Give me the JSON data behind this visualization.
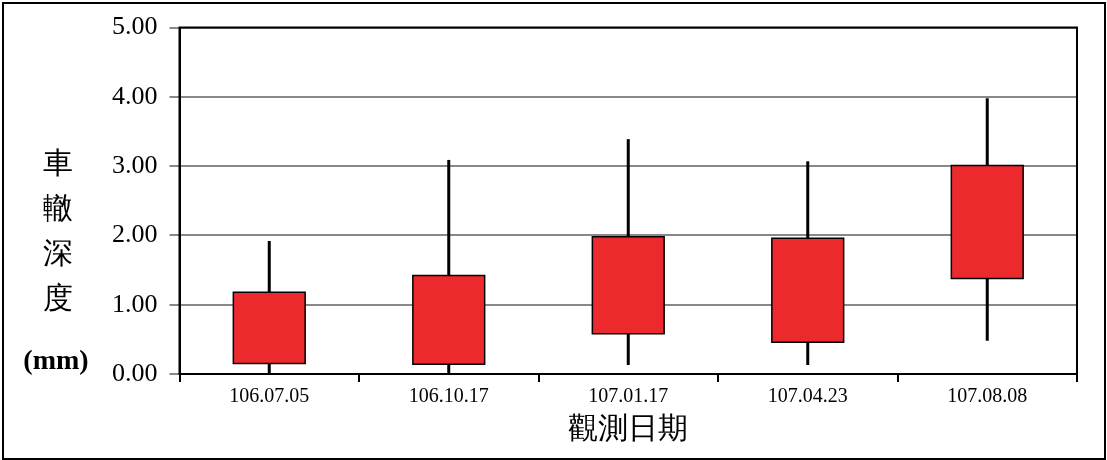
{
  "chart_data": {
    "type": "candlestick",
    "xlabel": "觀測日期",
    "ylabel": "車轍深度(mm)",
    "categories": [
      "106.07.05",
      "106.10.17",
      "107.01.17",
      "107.04.23",
      "107.08.08"
    ],
    "ohlc": [
      [
        0.15,
        1.92,
        0,
        1.18
      ],
      [
        0.14,
        3.09,
        0,
        1.42
      ],
      [
        0.58,
        3.39,
        0.13,
        1.98
      ],
      [
        0.46,
        3.07,
        0.13,
        1.96
      ],
      [
        1.38,
        3.98,
        0.48,
        3.01
      ]
    ],
    "color": "#ec2a2d",
    "ylim": [
      0,
      5
    ],
    "yticks": [
      {
        "value": 0,
        "label": "0.00"
      },
      {
        "value": 1,
        "label": "1.00"
      },
      {
        "value": 2,
        "label": "2.00"
      },
      {
        "value": 3,
        "label": "3.00"
      },
      {
        "value": 4,
        "label": "4.00"
      },
      {
        "value": 5,
        "label": "5.00"
      }
    ],
    "grid": "y",
    "legend": false
  }
}
